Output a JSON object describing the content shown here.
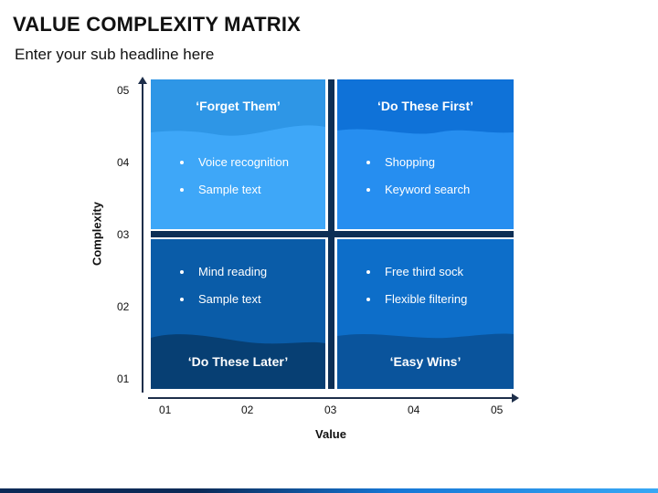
{
  "header": {
    "title": "VALUE COMPLEXITY MATRIX",
    "subtitle": "Enter your sub headline here"
  },
  "axes": {
    "y_title": "Complexity",
    "x_title": "Value",
    "y_ticks": [
      "05",
      "04",
      "03",
      "02",
      "01"
    ],
    "x_ticks": [
      "01",
      "02",
      "03",
      "04",
      "05"
    ]
  },
  "quadrants": {
    "top_left": {
      "label": "‘Forget Them’",
      "items": [
        "Voice recognition",
        "Sample text"
      ]
    },
    "top_right": {
      "label": "‘Do These First’",
      "items": [
        "Shopping",
        "Keyword search"
      ]
    },
    "bottom_left": {
      "label": "‘Do These Later’",
      "items": [
        "Mind reading",
        "Sample text"
      ]
    },
    "bottom_right": {
      "label": "‘Easy Wins’",
      "items": [
        "Free third sock",
        "Flexible filtering"
      ]
    }
  },
  "colors": {
    "top_left": "#3ea7f8",
    "top_right": "#268ef0",
    "bottom_left": "#0a5ca8",
    "bottom_right": "#0d6ec9",
    "divider": "#0d2f55"
  }
}
